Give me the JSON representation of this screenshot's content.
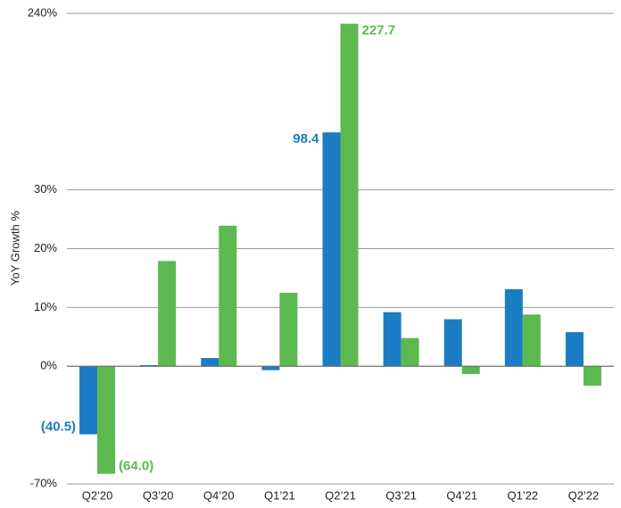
{
  "chart_data": {
    "type": "bar",
    "y_label": "YoY Growth %",
    "categories": [
      "Q2’20",
      "Q3’20",
      "Q4’20",
      "Q1’21",
      "Q2’21",
      "Q3’21",
      "Q4’21",
      "Q1’22",
      "Q2’22"
    ],
    "series": [
      {
        "color": "#1b7cc4",
        "values": [
          -40.5,
          0.2,
          1.4,
          -2.3,
          98.4,
          9.2,
          8.0,
          13.1,
          5.8
        ],
        "value_labels": [
          "(40.5)",
          null,
          null,
          null,
          "98.4",
          null,
          null,
          null,
          null
        ]
      },
      {
        "color": "#5cb94f",
        "values": [
          -64.0,
          17.9,
          23.9,
          12.5,
          227.7,
          4.8,
          -4.6,
          8.8,
          -11.5
        ],
        "value_labels": [
          "(64.0)",
          null,
          null,
          null,
          "227.7",
          null,
          null,
          null,
          null
        ]
      }
    ],
    "ylim": [
      -70,
      240
    ],
    "yticks": [
      {
        "value": -70,
        "label": "-70%"
      },
      {
        "value": 0,
        "label": "0%"
      },
      {
        "value": 10,
        "label": "10%"
      },
      {
        "value": 20,
        "label": "20%"
      },
      {
        "value": 30,
        "label": "30%"
      },
      {
        "value": 240,
        "label": "240%"
      }
    ],
    "grid": true
  }
}
